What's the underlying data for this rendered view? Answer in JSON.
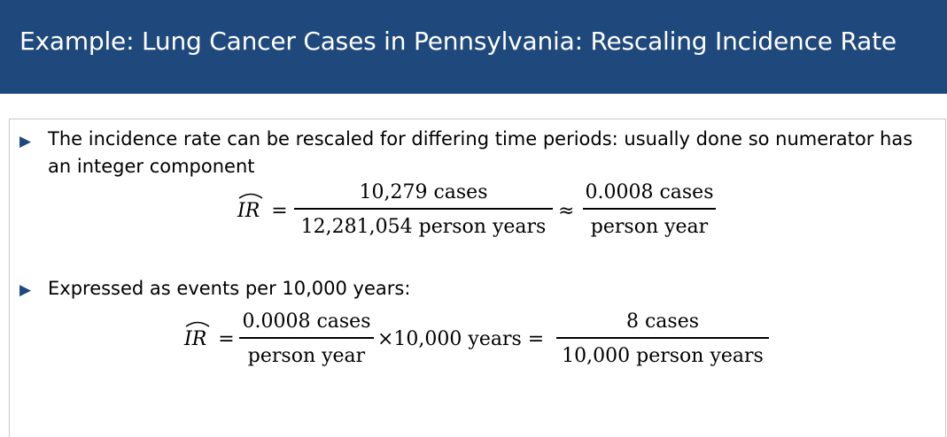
{
  "title": "Example: Lung Cancer Cases in Pennsylvania: Rescaling Incidence Rate",
  "bullets": [
    {
      "icon": "triangle-bullet-icon",
      "text": "The incidence rate can be rescaled for differing time periods: usually done so numerator has an integer component"
    },
    {
      "icon": "triangle-bullet-icon",
      "text": "Expressed as events per 10,000 years:"
    }
  ],
  "equation1": {
    "lhs": "IR",
    "equals": "=",
    "frac1_num": "10,279 cases",
    "frac1_den": "12,281,054 person years",
    "approx": "≈",
    "frac2_num": "0.0008 cases",
    "frac2_den": "person year"
  },
  "equation2": {
    "lhs": "IR",
    "equals": "=",
    "frac1_num": "0.0008 cases",
    "frac1_den": "person year",
    "multiplier": "×10,000 years =",
    "frac2_num": "8 cases",
    "frac2_den": "10,000 person years"
  },
  "colors": {
    "title_bg": "#1f497d",
    "title_text": "#ffffff",
    "bullet": "#1f497d"
  }
}
